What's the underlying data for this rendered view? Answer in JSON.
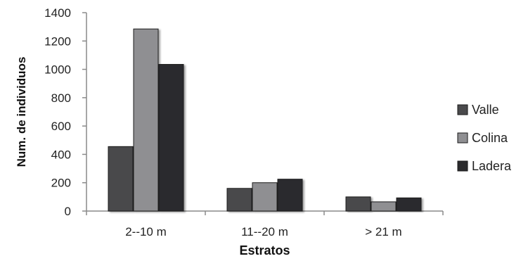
{
  "chart_data": {
    "type": "bar",
    "title": "",
    "xlabel": "Estratos",
    "ylabel": "Num. de individuos",
    "categories": [
      "2--10 m",
      "11--20 m",
      "> 21 m"
    ],
    "ylim": [
      0,
      1400
    ],
    "yticks": [
      0,
      200,
      400,
      600,
      800,
      1000,
      1200,
      1400
    ],
    "grid": false,
    "legend_position": "right",
    "series": [
      {
        "name": "Valle",
        "values": [
          455,
          160,
          100
        ],
        "color": "#4a4a4c"
      },
      {
        "name": "Colina",
        "values": [
          1285,
          200,
          65
        ],
        "color": "#8f8f92"
      },
      {
        "name": "Ladera",
        "values": [
          1035,
          225,
          93
        ],
        "color": "#2b2b2d"
      }
    ]
  }
}
